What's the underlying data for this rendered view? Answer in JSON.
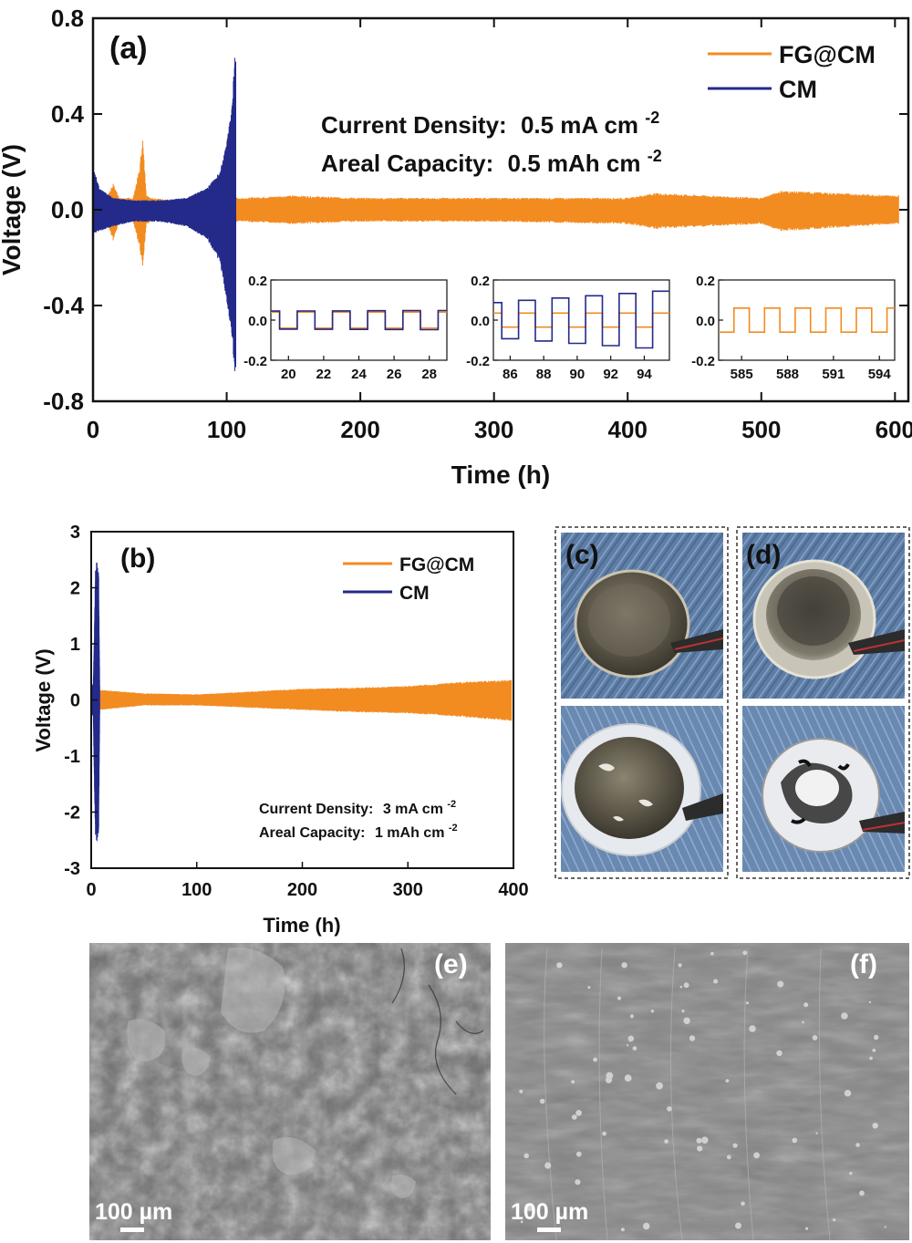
{
  "colors": {
    "fg": "#f28b20",
    "cm": "#232a8a",
    "axis": "#111111"
  },
  "chart_data": [
    {
      "id": "a",
      "type": "line",
      "panel_label": "(a)",
      "xlabel": "Time (h)",
      "ylabel": "Voltage (V)",
      "xlim": [
        0,
        610
      ],
      "ylim": [
        -0.8,
        0.8
      ],
      "xticks": [
        0,
        100,
        200,
        300,
        400,
        500,
        600
      ],
      "yticks": [
        0.8,
        0.4,
        0.0,
        -0.4,
        -0.8
      ],
      "ytick_labels": [
        "0.8",
        "0.4",
        "0.0",
        "-0.4",
        "-0.8"
      ],
      "annotations": [
        {
          "label": "Current Density:",
          "value": "0.5 mA cm",
          "sup": "-2"
        },
        {
          "label": "Areal Capacity:",
          "value": "0.5 mAh cm",
          "sup": "-2"
        }
      ],
      "series": [
        {
          "name": "FG@CM",
          "color": "#f28b20",
          "envelope_t": [
            0,
            10,
            15,
            20,
            30,
            35,
            37,
            40,
            45,
            60,
            100,
            110,
            150,
            200,
            300,
            400,
            420,
            500,
            515,
            600
          ],
          "envelope_upper": [
            0.02,
            0.05,
            0.11,
            0.05,
            0.05,
            0.18,
            0.31,
            0.06,
            0.05,
            0.04,
            0.05,
            0.05,
            0.06,
            0.05,
            0.05,
            0.05,
            0.07,
            0.05,
            0.08,
            0.06
          ],
          "envelope_lower": [
            -0.02,
            -0.05,
            -0.13,
            -0.05,
            -0.05,
            -0.16,
            -0.25,
            -0.06,
            -0.05,
            -0.04,
            -0.05,
            -0.05,
            -0.06,
            -0.05,
            -0.05,
            -0.06,
            -0.08,
            -0.06,
            -0.09,
            -0.06
          ]
        },
        {
          "name": "CM",
          "color": "#232a8a",
          "envelope_t": [
            0,
            5,
            15,
            30,
            50,
            70,
            85,
            95,
            100,
            104,
            106,
            107
          ],
          "envelope_upper": [
            0.18,
            0.09,
            0.05,
            0.04,
            0.04,
            0.05,
            0.09,
            0.16,
            0.28,
            0.45,
            0.64,
            0.64
          ],
          "envelope_lower": [
            -0.1,
            -0.09,
            -0.07,
            -0.05,
            -0.05,
            -0.07,
            -0.12,
            -0.22,
            -0.38,
            -0.55,
            -0.68,
            -0.68
          ]
        }
      ],
      "insets": [
        {
          "xlim": [
            19,
            29
          ],
          "ylim": [
            -0.2,
            0.2
          ],
          "xticks": [
            20,
            22,
            24,
            26,
            28
          ],
          "yticks": [
            0.2,
            0.0,
            -0.2
          ],
          "ytick_labels": [
            "0.2",
            "0.0",
            "-0.2"
          ],
          "period": 2,
          "fg_amp": 0.04,
          "cm_amp_start": 0.045,
          "cm_amp_end": 0.048
        },
        {
          "xlim": [
            85,
            95.5
          ],
          "ylim": [
            -0.2,
            0.2
          ],
          "xticks": [
            86,
            88,
            90,
            92,
            94
          ],
          "yticks": [
            0.2,
            0.0,
            -0.2
          ],
          "ytick_labels": [
            "0.2",
            "0.0",
            "-0.2"
          ],
          "period": 2,
          "fg_amp": 0.035,
          "cm_amp_start": 0.09,
          "cm_amp_end": 0.15
        },
        {
          "xlim": [
            583.5,
            595
          ],
          "ylim": [
            -0.2,
            0.2
          ],
          "xticks": [
            585,
            588,
            591,
            594
          ],
          "yticks": [
            0.2,
            0.0,
            -0.2
          ],
          "ytick_labels": [
            "0.2",
            "0.0",
            "-0.2"
          ],
          "period": 2,
          "fg_amp": 0.06
        }
      ]
    },
    {
      "id": "b",
      "type": "line",
      "panel_label": "(b)",
      "xlabel": "Time (h)",
      "ylabel": "Voltage (V)",
      "xlim": [
        0,
        400
      ],
      "ylim": [
        -3,
        3
      ],
      "xticks": [
        0,
        100,
        200,
        300,
        400
      ],
      "yticks": [
        3,
        2,
        1,
        0,
        -1,
        -2,
        -3
      ],
      "ytick_labels": [
        "3",
        "2",
        "1",
        "0",
        "-1",
        "-2",
        "-3"
      ],
      "annotations": [
        {
          "label": "Current Density:",
          "value": "3 mA cm",
          "sup": "-2"
        },
        {
          "label": "Areal Capacity:",
          "value": "1 mAh cm",
          "sup": "-2"
        }
      ],
      "series": [
        {
          "name": "FG@CM",
          "color": "#f28b20",
          "envelope_t": [
            8,
            50,
            100,
            150,
            200,
            250,
            300,
            350,
            400
          ],
          "envelope_upper": [
            0.18,
            0.12,
            0.1,
            0.15,
            0.2,
            0.22,
            0.25,
            0.32,
            0.36
          ],
          "envelope_lower": [
            -0.18,
            -0.1,
            -0.1,
            -0.14,
            -0.18,
            -0.22,
            -0.24,
            -0.3,
            -0.38
          ]
        },
        {
          "name": "CM",
          "color": "#232a8a",
          "envelope_t": [
            0,
            2,
            3,
            4,
            5,
            6,
            7,
            8
          ],
          "envelope_upper": [
            0.2,
            0.3,
            1.2,
            2.3,
            2.5,
            2.4,
            2.3,
            0.3
          ],
          "envelope_lower": [
            -0.2,
            -0.3,
            -1.5,
            -2.4,
            -2.55,
            -2.5,
            -2.4,
            -0.3
          ]
        }
      ]
    }
  ],
  "photos": {
    "c": {
      "label": "(c)"
    },
    "d": {
      "label": "(d)"
    }
  },
  "sem": {
    "e": {
      "label": "(e)",
      "scale_text": "100 µm"
    },
    "f": {
      "label": "(f)",
      "scale_text": "100 µm"
    }
  }
}
